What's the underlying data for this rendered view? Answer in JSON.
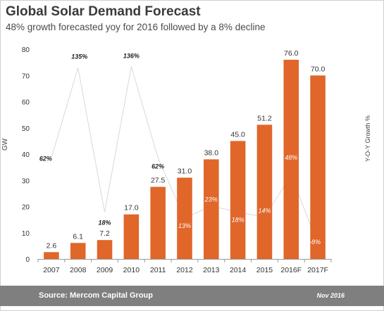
{
  "header": {
    "title": "Global Solar Demand Forecast",
    "subtitle": "48% growth forecasted yoy for 2016  followed by a 8% decline"
  },
  "axes": {
    "left_label": "GW",
    "right_label": "Y-O-Y Growth %"
  },
  "footer": {
    "source": "Source: Mercom Capital Group",
    "date": "Nov 2016"
  },
  "colors": {
    "bar": "#e0662a",
    "growth_line": "#d9d9d9"
  },
  "chart_data": {
    "type": "bar",
    "categories": [
      "2007",
      "2008",
      "2009",
      "2010",
      "2011",
      "2012",
      "2013",
      "2014",
      "2015",
      "2016F",
      "2017F"
    ],
    "series": [
      {
        "values": [
          2.6,
          6.1,
          7.2,
          17.0,
          27.5,
          31.0,
          38.0,
          45.0,
          51.2,
          76.0,
          70.0
        ]
      }
    ],
    "value_labels": [
      "2.6",
      "6.1",
      "7.2",
      "17.0",
      "27.5",
      "31.0",
      "38.0",
      "45.0",
      "51.2",
      "76.0",
      "70.0"
    ],
    "growth": {
      "values": [
        62,
        135,
        18,
        136,
        62,
        13,
        23,
        18,
        14,
        48,
        -8
      ],
      "labels": [
        "62%",
        "135%",
        "18%",
        "136%",
        "62%",
        "13%",
        "23%",
        "18%",
        "14%",
        "48%",
        "-8%"
      ]
    },
    "yticks": [
      "0",
      "10",
      "20",
      "30",
      "40",
      "50",
      "60",
      "70",
      "80"
    ],
    "ylim": [
      0,
      80
    ],
    "ylabel": "GW",
    "y2label": "Y-O-Y Growth %",
    "grid": false,
    "legend": "none"
  }
}
